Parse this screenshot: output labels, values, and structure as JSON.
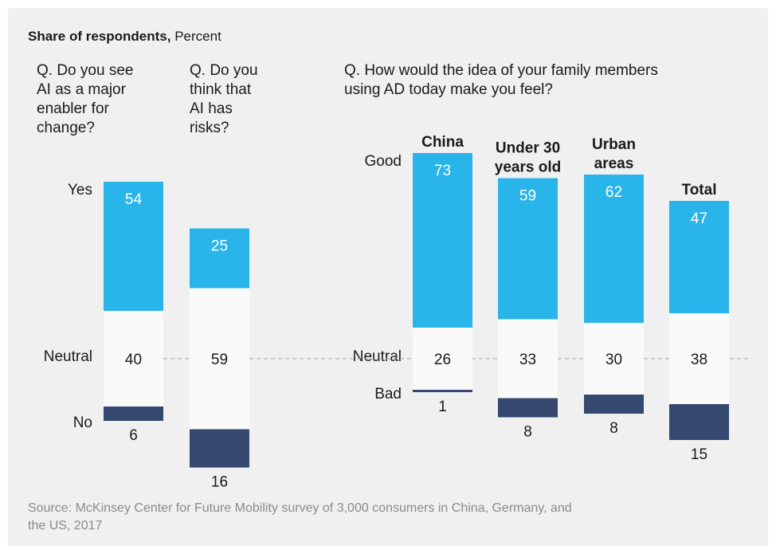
{
  "heading": {
    "bold": "Share of respondents,",
    "unit": "Percent"
  },
  "source_lines": [
    "Source: McKinsey Center for Future Mobility survey of 3,000 consumers in China, Germany, and",
    "the US, 2017"
  ],
  "colors": {
    "good": "#29b5ea",
    "neutral": "#fafafa",
    "bad": "#344870",
    "panel": "#f0f0f0",
    "dashed": "#aaaaaa"
  },
  "chart_data": [
    {
      "type": "bar",
      "stacked": true,
      "question": [
        "Q. Do you see",
        "AI as a major",
        "enabler for",
        "change?"
      ],
      "level_labels": [
        "Yes",
        "Neutral",
        "No"
      ],
      "categories": [
        ""
      ],
      "series": [
        {
          "name": "Yes",
          "values": [
            54
          ]
        },
        {
          "name": "Neutral",
          "values": [
            40
          ]
        },
        {
          "name": "No",
          "values": [
            6
          ]
        }
      ]
    },
    {
      "type": "bar",
      "stacked": true,
      "question": [
        "Q. Do you",
        "think that",
        "AI has",
        "risks?"
      ],
      "categories": [
        ""
      ],
      "series": [
        {
          "name": "Yes",
          "values": [
            25
          ]
        },
        {
          "name": "Neutral",
          "values": [
            59
          ]
        },
        {
          "name": "No",
          "values": [
            16
          ]
        }
      ]
    },
    {
      "type": "bar",
      "stacked": true,
      "question": [
        "Q. How would the idea of your family members",
        "using AD today make you feel?"
      ],
      "level_labels": [
        "Good",
        "Neutral",
        "Bad"
      ],
      "categories": [
        [
          "China"
        ],
        [
          "Under 30",
          "years old"
        ],
        [
          "Urban",
          "areas"
        ],
        [
          "Total"
        ]
      ],
      "series": [
        {
          "name": "Good",
          "values": [
            73,
            59,
            62,
            47
          ]
        },
        {
          "name": "Neutral",
          "values": [
            26,
            33,
            30,
            38
          ]
        },
        {
          "name": "Bad",
          "values": [
            1,
            8,
            8,
            15
          ]
        }
      ]
    }
  ]
}
